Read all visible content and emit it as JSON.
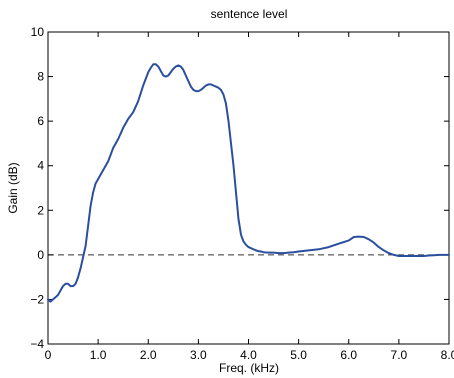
{
  "chart_data": {
    "type": "line",
    "title": "sentence level",
    "xlabel": "Freq. (kHz)",
    "ylabel": "Gain (dB)",
    "xlim": [
      0,
      8
    ],
    "ylim": [
      -4,
      10
    ],
    "grid": false,
    "x_ticks": [
      0,
      1,
      2,
      3,
      4,
      5,
      6,
      7,
      8
    ],
    "x_tick_labels": [
      "0",
      "1.0",
      "2.0",
      "3.0",
      "4.0",
      "5.0",
      "6.0",
      "7.0",
      "8.0"
    ],
    "y_ticks": [
      -4,
      -2,
      0,
      2,
      4,
      6,
      8,
      10
    ],
    "y_tick_labels": [
      "−4",
      "−2",
      "0",
      "2",
      "4",
      "6",
      "8",
      "10"
    ],
    "line_color": "#2a4f9e",
    "reference_line": {
      "y": 0,
      "style": "dashed",
      "color": "#333333"
    },
    "series": [
      {
        "x": [
          0,
          0.05,
          0.1,
          0.15,
          0.2,
          0.25,
          0.3,
          0.35,
          0.4,
          0.45,
          0.5,
          0.55,
          0.6,
          0.65,
          0.7,
          0.75,
          0.8,
          0.85,
          0.9,
          0.95,
          1.0,
          1.05,
          1.1,
          1.2,
          1.3,
          1.4,
          1.5,
          1.6,
          1.7,
          1.8,
          1.9,
          2.0,
          2.05,
          2.1,
          2.15,
          2.2,
          2.25,
          2.3,
          2.35,
          2.4,
          2.45,
          2.5,
          2.55,
          2.6,
          2.65,
          2.7,
          2.75,
          2.8,
          2.85,
          2.9,
          2.95,
          3.0,
          3.05,
          3.1,
          3.15,
          3.2,
          3.25,
          3.3,
          3.35,
          3.4,
          3.45,
          3.5,
          3.55,
          3.6,
          3.65,
          3.7,
          3.75,
          3.8,
          3.85,
          3.9,
          3.95,
          4.0,
          4.05,
          4.1,
          4.15,
          4.2,
          4.25,
          4.3,
          4.4,
          4.5,
          4.6,
          4.7,
          4.8,
          4.9,
          5.0,
          5.2,
          5.4,
          5.6,
          5.8,
          6.0,
          6.1,
          6.2,
          6.3,
          6.4,
          6.5,
          6.6,
          6.7,
          6.8,
          6.9,
          7.0,
          7.1,
          7.2,
          7.3,
          7.4,
          7.5,
          7.6,
          7.7,
          7.8,
          7.9,
          8.0
        ],
        "y": [
          -2.0,
          -2.1,
          -2.0,
          -1.9,
          -1.8,
          -1.6,
          -1.4,
          -1.3,
          -1.3,
          -1.4,
          -1.4,
          -1.3,
          -1.0,
          -0.6,
          -0.1,
          0.4,
          1.3,
          2.2,
          2.8,
          3.2,
          3.4,
          3.6,
          3.8,
          4.2,
          4.8,
          5.2,
          5.7,
          6.1,
          6.4,
          6.9,
          7.6,
          8.2,
          8.4,
          8.55,
          8.55,
          8.45,
          8.25,
          8.05,
          8.0,
          8.05,
          8.2,
          8.35,
          8.45,
          8.5,
          8.45,
          8.3,
          8.05,
          7.8,
          7.55,
          7.4,
          7.35,
          7.35,
          7.4,
          7.5,
          7.6,
          7.65,
          7.65,
          7.6,
          7.55,
          7.5,
          7.4,
          7.2,
          6.8,
          6.0,
          5.0,
          4.0,
          2.8,
          1.6,
          0.9,
          0.6,
          0.45,
          0.35,
          0.3,
          0.25,
          0.2,
          0.17,
          0.15,
          0.12,
          0.1,
          0.1,
          0.08,
          0.08,
          0.1,
          0.12,
          0.15,
          0.2,
          0.25,
          0.35,
          0.5,
          0.65,
          0.8,
          0.82,
          0.8,
          0.7,
          0.55,
          0.35,
          0.2,
          0.08,
          0.0,
          -0.05,
          -0.05,
          -0.05,
          -0.05,
          -0.05,
          -0.05,
          -0.03,
          -0.02,
          0.0,
          0.0,
          0.0
        ]
      }
    ]
  }
}
